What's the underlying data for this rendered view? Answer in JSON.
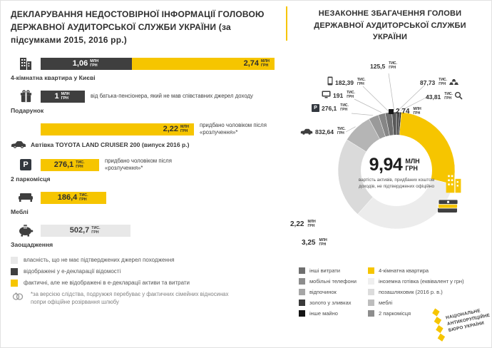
{
  "chart_data": [
    {
      "type": "bar",
      "title": "ДЕКЛАРУВАННЯ НЕДОСТОВІРНОЇ ІНФОРМАЦІЇ ГОЛОВОЮ ДЕРЖАВНОЇ АУДИТОРСЬКОЇ СЛУЖБИ УКРАЇНИ (за підсумками 2015, 2016 рр.)",
      "items": [
        {
          "label": "4-кімнатна квартира у Києві",
          "segments": [
            {
              "display": "1,06",
              "unit": "млн грн",
              "value_uah": 1060000,
              "category": "відображені у е-декларації відомості",
              "color": "#3f3f3f"
            },
            {
              "display": "2,74",
              "unit": "млн грн",
              "value_uah": 2740000,
              "category": "фактичні, але не відображені в е-декларації",
              "color": "#f6c500"
            }
          ]
        },
        {
          "label": "Подарунок",
          "note": "від батька-пенсіонера, який не мав співставних джерел доходу",
          "segments": [
            {
              "display": "1",
              "unit": "млн грн",
              "value_uah": 1000000,
              "category": "відображені у е-декларації відомості",
              "color": "#3f3f3f"
            }
          ]
        },
        {
          "label": "Автівка TOYOTA LAND CRUISER 200 (випуск 2016 р.)",
          "note": "придбано чоловіком після «розлучення»*",
          "segments": [
            {
              "display": "2,22",
              "unit": "млн грн",
              "value_uah": 2220000,
              "category": "фактичні, але не відображені в е-декларації",
              "color": "#f6c500"
            }
          ]
        },
        {
          "label": "2 паркомісця",
          "note": "придбано чоловіком після «розлучення»*",
          "segments": [
            {
              "display": "276,1",
              "unit": "тис. грн",
              "value_uah": 276100,
              "category": "фактичні, але не відображені в е-декларації",
              "color": "#f6c500"
            }
          ]
        },
        {
          "label": "Меблі",
          "segments": [
            {
              "display": "186,4",
              "unit": "тис. грн",
              "value_uah": 186400,
              "category": "фактичні, але не відображені в е-декларації",
              "color": "#f6c500"
            }
          ]
        },
        {
          "label": "Заощадження",
          "segments": [
            {
              "display": "502,7",
              "unit": "тис. грн",
              "value_uah": 502700,
              "category": "власність, що не має підтверджених джерел походження",
              "color": "#e8e8e8"
            }
          ]
        }
      ],
      "legend": [
        {
          "color": "#e8e8e8",
          "label": "власність, що не має підтверджених джерел походження"
        },
        {
          "color": "#3f3f3f",
          "label": "відображені у е-декларації відомості"
        },
        {
          "color": "#f6c500",
          "label": "фактичні, але не відображені в е-декларації активи та витрати"
        }
      ],
      "footnote": "*за версією слідства, подружжя перебуває у фактичних сімейних відносинах попри офіційне розірвання шлюбу"
    },
    {
      "type": "pie",
      "title": "НЕЗАКОННЕ ЗБАГАЧЕННЯ ГОЛОВИ ДЕРЖАВНОЇ АУДИТОРСЬКОЇ СЛУЖБИ УКРАЇНИ",
      "center": {
        "display": "9,94",
        "unit": "млн грн",
        "value_uah": 9940000,
        "caption": "вартість активів, придбаних коштом доходів, не підтверджених офіційно"
      },
      "slices": [
        {
          "display": "87,73",
          "unit": "тис. грн",
          "value_uah": 87730,
          "color": "#4a4a4a",
          "label": "відпочинок"
        },
        {
          "display": "43,81",
          "unit": "тис. грн",
          "value_uah": 43810,
          "color": "#181818",
          "label": "інше майно"
        },
        {
          "display": "2,74",
          "unit": "млн грн",
          "value_uah": 2740000,
          "color": "#f6c500",
          "label": "4-кімнатна квартира"
        },
        {
          "display": "3,25",
          "unit": "млн грн",
          "value_uah": 3250000,
          "color": "#ececec",
          "label": "іноземна готівка (еквівалент у грн)"
        },
        {
          "display": "2,22",
          "unit": "млн грн",
          "value_uah": 2220000,
          "color": "#dadada",
          "label": "позашляховик (2016 р. в.)"
        },
        {
          "display": "832,64",
          "unit": "тис. грн",
          "value_uah": 832640,
          "color": "#b5b5b5",
          "label": "меблі"
        },
        {
          "display": "276,1",
          "unit": "тис. грн",
          "value_uah": 276100,
          "color": "#9a9a9a",
          "label": "2 паркомісця"
        },
        {
          "display": "191",
          "unit": "тис. грн",
          "value_uah": 191000,
          "color": "#868686",
          "label": "золото у зливках"
        },
        {
          "display": "182,39",
          "unit": "тис. грн",
          "value_uah": 182390,
          "color": "#707070",
          "label": "мобільні телефони"
        },
        {
          "display": "125,5",
          "unit": "тис. грн",
          "value_uah": 125500,
          "color": "#585858",
          "label": "інші витрати"
        }
      ],
      "legend_left": [
        {
          "color": "#6f6f6f",
          "label": "інші витрати"
        },
        {
          "color": "#8d8d8d",
          "label": "мобільні телефони"
        },
        {
          "color": "#a6a6a6",
          "label": "відпочинок"
        },
        {
          "color": "#3a3a3a",
          "label": "золото у зливках"
        },
        {
          "color": "#141414",
          "label": "інше майно"
        }
      ],
      "legend_right": [
        {
          "color": "#f6c500",
          "label": "4-кімнатна квартира"
        },
        {
          "color": "#efefef",
          "label": "іноземна готівка (еквівалент у грн)"
        },
        {
          "color": "#dcdcdc",
          "label": "позашляховик (2016 р. в.)"
        },
        {
          "color": "#bdbdbd",
          "label": "меблі"
        },
        {
          "color": "#8d8d8d",
          "label": "2 паркомісця"
        }
      ]
    }
  ],
  "icons": {
    "parking_letter": "P"
  },
  "logo": {
    "lines": [
      "НАЦІОНАЛЬНЕ",
      "АНТИКОРУПЦІЙНЕ",
      "БЮРО УКРАЇНИ"
    ]
  }
}
